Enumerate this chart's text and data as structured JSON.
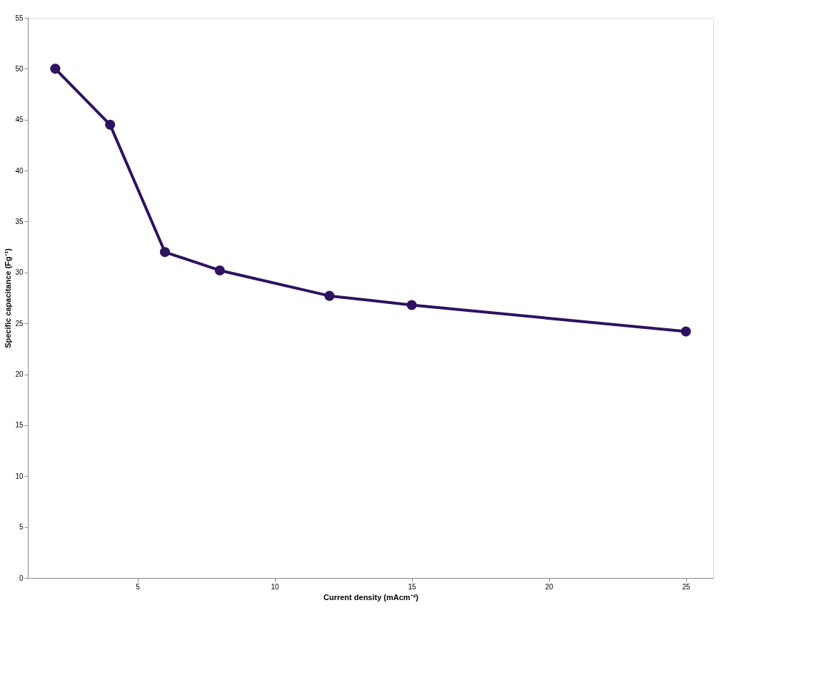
{
  "chart_data": {
    "type": "line",
    "xlabel": "Current density (mAcm⁻²)",
    "ylabel": "Specific capacitance (Fg⁻¹)",
    "x": [
      2,
      4,
      6,
      8,
      12,
      15,
      25
    ],
    "series": [
      {
        "color": "#2e1260",
        "values": [
          50.0,
          44.5,
          32.0,
          30.2,
          27.7,
          26.8,
          24.2
        ]
      }
    ],
    "xlim": [
      1,
      26
    ],
    "xticks": [
      5,
      10,
      15,
      20,
      25
    ],
    "ylim": [
      0,
      55
    ],
    "yticks": [
      0,
      5,
      10,
      15,
      20,
      25,
      30,
      35,
      40,
      45,
      50,
      55
    ],
    "grid": false,
    "marker": "circle",
    "line_style": "solid"
  }
}
